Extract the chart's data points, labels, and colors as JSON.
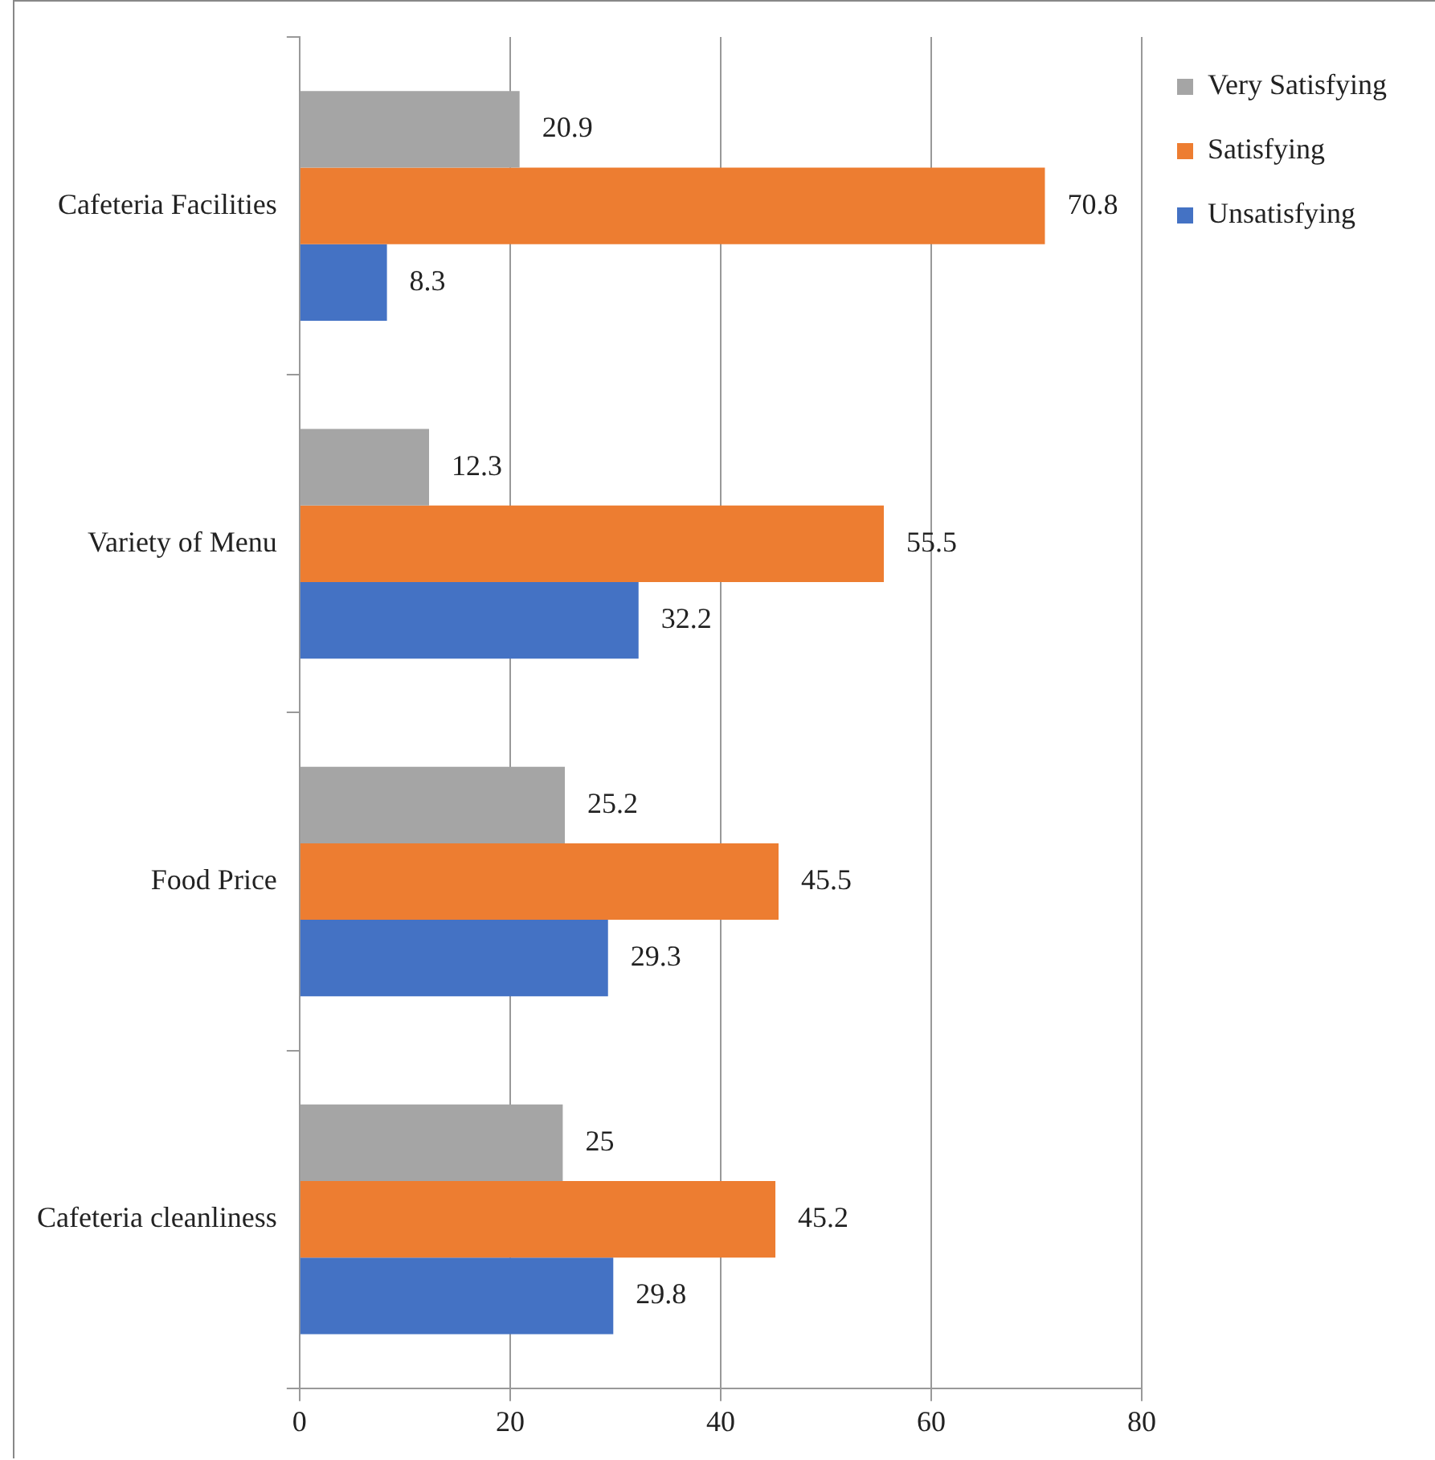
{
  "chart_data": {
    "type": "bar",
    "orientation": "horizontal",
    "categories": [
      "Cafeteria Facilities",
      "Variety of Menu",
      "Food Price",
      "Cafeteria cleanliness"
    ],
    "series": [
      {
        "name": "Very Satisfying",
        "color": "#a5a5a5",
        "values": [
          20.9,
          12.3,
          25.2,
          25
        ]
      },
      {
        "name": "Satisfying",
        "color": "#ed7d31",
        "values": [
          70.8,
          55.5,
          45.5,
          45.2
        ]
      },
      {
        "name": "Unsatisfying",
        "color": "#4472c4",
        "values": [
          8.3,
          32.2,
          29.3,
          29.8
        ]
      }
    ],
    "xlim": [
      0,
      80
    ],
    "xticks": [
      0,
      20,
      40,
      60,
      80
    ],
    "grid": "x",
    "legend": "right",
    "data_labels": true
  }
}
